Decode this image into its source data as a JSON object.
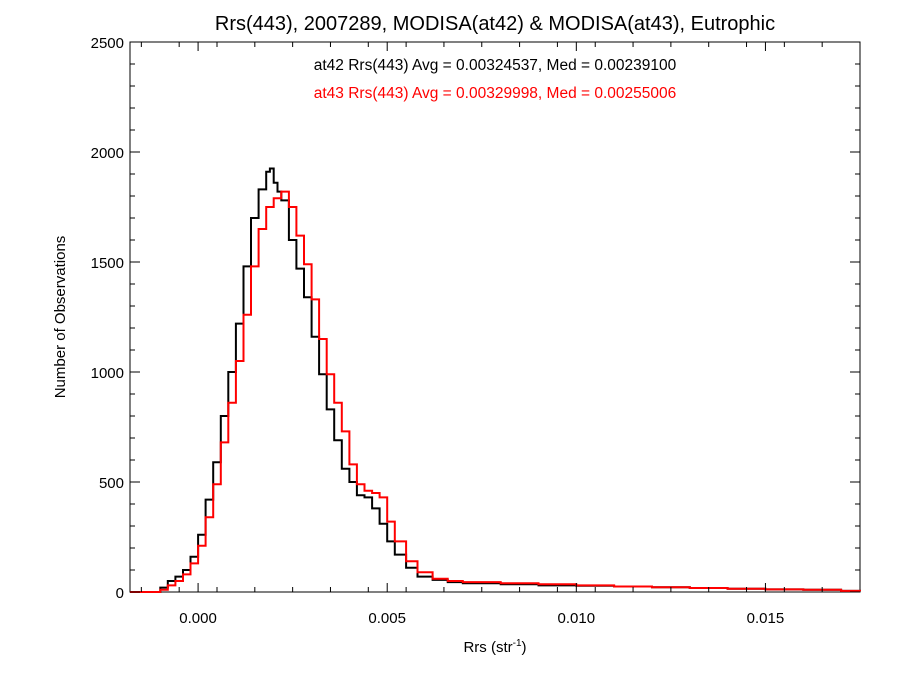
{
  "chart_data": {
    "type": "line",
    "subtype": "step-histogram",
    "title": "Rrs(443), 2007289, MODISA(at42) & MODISA(at43), Eutrophic",
    "xlabel_main": "Rrs (str",
    "xlabel_sup": "-1",
    "xlabel_close": ")",
    "ylabel": "Number of Observations",
    "xlim": [
      -0.0018,
      0.0175
    ],
    "ylim": [
      0,
      2500
    ],
    "xticks": [
      {
        "value": 0.0,
        "label": "0.000"
      },
      {
        "value": 0.005,
        "label": "0.005"
      },
      {
        "value": 0.01,
        "label": "0.010"
      },
      {
        "value": 0.015,
        "label": "0.015"
      }
    ],
    "yticks": [
      {
        "value": 0,
        "label": "0"
      },
      {
        "value": 500,
        "label": "500"
      },
      {
        "value": 1000,
        "label": "1000"
      },
      {
        "value": 1500,
        "label": "1500"
      },
      {
        "value": 2000,
        "label": "2000"
      },
      {
        "value": 2500,
        "label": "2500"
      }
    ],
    "annotations": [
      {
        "text": "at42 Rrs(443) Avg = 0.00324537, Med = 0.00239100",
        "color": "#000000"
      },
      {
        "text": "at43 Rrs(443) Avg = 0.00329998, Med = 0.00255006",
        "color": "#ff0000"
      }
    ],
    "series": [
      {
        "color": "#000000",
        "x": [
          -0.0018,
          -0.0012,
          -0.001,
          -0.0008,
          -0.0006,
          -0.0004,
          -0.0002,
          0.0,
          0.0002,
          0.0004,
          0.0006,
          0.0008,
          0.001,
          0.0012,
          0.0014,
          0.0016,
          0.0018,
          0.0019,
          0.002,
          0.0021,
          0.0022,
          0.0024,
          0.0026,
          0.0028,
          0.003,
          0.0032,
          0.0034,
          0.0036,
          0.0038,
          0.004,
          0.0042,
          0.0044,
          0.0046,
          0.0048,
          0.005,
          0.0052,
          0.0055,
          0.0058,
          0.0062,
          0.0066,
          0.007,
          0.008,
          0.009,
          0.01,
          0.011,
          0.012,
          0.013,
          0.014,
          0.015,
          0.016,
          0.017,
          0.0175
        ],
        "y": [
          0,
          0,
          20,
          50,
          70,
          100,
          160,
          260,
          420,
          590,
          800,
          1000,
          1220,
          1480,
          1700,
          1830,
          1910,
          1925,
          1860,
          1820,
          1780,
          1600,
          1470,
          1340,
          1160,
          990,
          830,
          690,
          560,
          500,
          440,
          430,
          380,
          310,
          230,
          170,
          110,
          70,
          55,
          45,
          40,
          35,
          30,
          28,
          25,
          22,
          18,
          15,
          12,
          10,
          5,
          3
        ]
      },
      {
        "color": "#ff0000",
        "x": [
          -0.0018,
          -0.0012,
          -0.001,
          -0.0008,
          -0.0006,
          -0.0004,
          -0.0002,
          0.0,
          0.0002,
          0.0004,
          0.0006,
          0.0008,
          0.001,
          0.0012,
          0.0014,
          0.0016,
          0.0018,
          0.002,
          0.0022,
          0.0024,
          0.0026,
          0.0028,
          0.003,
          0.0032,
          0.0034,
          0.0036,
          0.0038,
          0.004,
          0.0042,
          0.0044,
          0.0046,
          0.0048,
          0.005,
          0.0052,
          0.0055,
          0.0058,
          0.0062,
          0.0066,
          0.007,
          0.008,
          0.009,
          0.01,
          0.011,
          0.012,
          0.013,
          0.014,
          0.015,
          0.016,
          0.017,
          0.0175
        ],
        "y": [
          0,
          0,
          10,
          30,
          50,
          80,
          130,
          210,
          340,
          490,
          680,
          860,
          1050,
          1260,
          1480,
          1650,
          1750,
          1790,
          1820,
          1750,
          1620,
          1490,
          1330,
          1150,
          990,
          860,
          730,
          580,
          490,
          460,
          450,
          430,
          320,
          230,
          140,
          90,
          60,
          50,
          45,
          40,
          35,
          30,
          25,
          22,
          18,
          15,
          12,
          10,
          5,
          3
        ]
      }
    ]
  }
}
